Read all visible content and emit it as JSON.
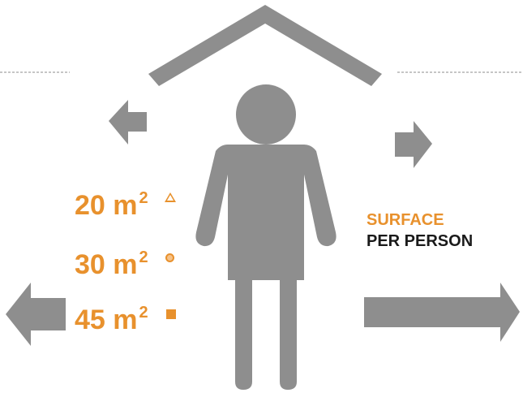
{
  "colors": {
    "accent": "#e8912d",
    "figure": "#8e8e8e",
    "text_dark": "#1a1a1a",
    "dashed_line": "#8e8e8e"
  },
  "icons": {
    "roof": "roof-icon",
    "person": "person-icon",
    "arrow_small": "arrow-icon",
    "arrow_large": "arrow-icon"
  },
  "areas": [
    {
      "value": "20 m",
      "sup": "2",
      "marker": "triangle-icon"
    },
    {
      "value": "30 m",
      "sup": "2",
      "marker": "circle-icon"
    },
    {
      "value": "45 m",
      "sup": "2",
      "marker": "square-icon"
    }
  ],
  "caption": {
    "line1": "SURFACE",
    "line2": "PER PERSON"
  }
}
